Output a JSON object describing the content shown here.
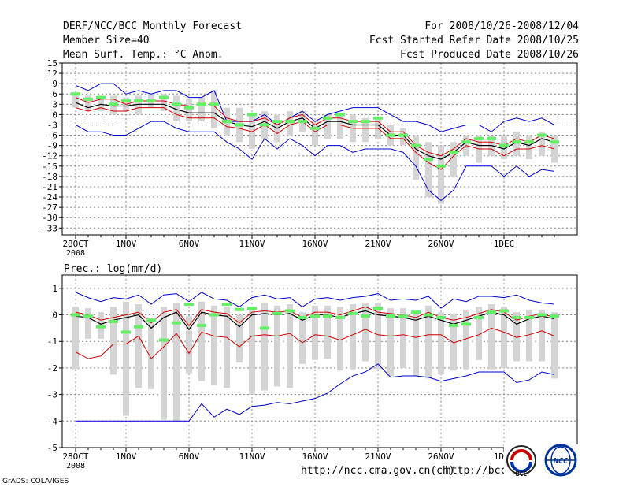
{
  "header": {
    "title": "DERF/NCC/BCC Monthly Forecast",
    "member_size": "Member Size=40",
    "variable": "Mean Surf. Temp.: °C Anom.",
    "period": "For 2008/10/26-2008/12/04",
    "fcst_started": "Fcst Started Refer Date 2008/10/25",
    "fcst_produced": "Fcst Produced Date 2008/10/26"
  },
  "footer": {
    "url1": "http://ncc.cma.gov.cn(ch)",
    "url2": "http://bcc.",
    "grads": "GrADS: COLA/IGES",
    "logo1": "BCC",
    "logo2": "NCC"
  },
  "colors": {
    "upper": "#0000cc",
    "lower": "#0000cc",
    "p25_p75": "#cc0000",
    "median": "#000000",
    "observed": "#66ee66",
    "spread": "#d4d4d4",
    "grid": "#888888"
  },
  "chart_data": [
    {
      "type": "line",
      "title": "Mean Surf. Temp.: °C Anom.",
      "ylim": [
        -35,
        15
      ],
      "yticks": [
        15,
        12,
        9,
        6,
        3,
        0,
        -3,
        -6,
        -9,
        -12,
        -15,
        -18,
        -21,
        -24,
        -27,
        -30,
        -33
      ],
      "x_tick_labels": [
        {
          "day": 0,
          "label": "28OCT",
          "sub": "2008"
        },
        {
          "day": 4,
          "label": "1NOV"
        },
        {
          "day": 9,
          "label": "6NOV"
        },
        {
          "day": 14,
          "label": "11NOV"
        },
        {
          "day": 19,
          "label": "16NOV"
        },
        {
          "day": 24,
          "label": "21NOV"
        },
        {
          "day": 29,
          "label": "26NOV"
        },
        {
          "day": 34,
          "label": "1DEC"
        }
      ],
      "x": [
        0,
        1,
        2,
        3,
        4,
        5,
        6,
        7,
        8,
        9,
        10,
        11,
        12,
        13,
        14,
        15,
        16,
        17,
        18,
        19,
        20,
        21,
        22,
        23,
        24,
        25,
        26,
        27,
        28,
        29,
        30,
        31,
        32,
        33,
        34,
        35,
        36,
        37,
        38
      ],
      "series": [
        {
          "name": "upper",
          "values": [
            8.5,
            7,
            9,
            9,
            6,
            7,
            6,
            7,
            7,
            5,
            5,
            7,
            -2,
            -2,
            -2,
            0,
            -3,
            -1,
            1,
            -2,
            0,
            1,
            2,
            2,
            2,
            0,
            -2,
            -2,
            -3,
            -5,
            -4,
            -3,
            -3,
            -5,
            -2,
            -1,
            -2,
            -1,
            -3
          ]
        },
        {
          "name": "p75",
          "values": [
            5,
            3.5,
            4.5,
            4.5,
            3,
            4,
            4,
            4,
            3,
            2.5,
            2.5,
            2.5,
            -1,
            -2,
            -2,
            -1,
            -3,
            -1,
            0,
            -3,
            -1,
            -1,
            -2,
            -2,
            -2,
            -5,
            -5,
            -9,
            -11,
            -12,
            -10,
            -7,
            -8,
            -8,
            -9,
            -7,
            -8,
            -6,
            -7
          ]
        },
        {
          "name": "median",
          "values": [
            3.5,
            2,
            3,
            2.5,
            2.5,
            3,
            3,
            3,
            1.5,
            0.5,
            0.5,
            0.5,
            -2,
            -3,
            -3.5,
            -2,
            -4,
            -2,
            -1,
            -4,
            -2,
            -2,
            -3,
            -3,
            -3,
            -6,
            -6,
            -10,
            -12,
            -13,
            -11,
            -8,
            -9,
            -9,
            -10,
            -8,
            -9,
            -7,
            -8
          ]
        },
        {
          "name": "p25",
          "values": [
            2,
            1,
            2,
            1,
            1,
            2,
            2,
            2,
            0,
            -1,
            -1,
            -1,
            -3.5,
            -4,
            -5,
            -3,
            -5.5,
            -3,
            -2,
            -5,
            -3,
            -3,
            -4,
            -4,
            -4,
            -7,
            -7,
            -11,
            -14,
            -16,
            -12,
            -9,
            -10,
            -10,
            -12,
            -10,
            -10,
            -9,
            -10
          ]
        },
        {
          "name": "lower",
          "values": [
            -3,
            -5,
            -5,
            -6,
            -6,
            -4,
            -2,
            -2,
            -4,
            -5,
            -5,
            -5,
            -8,
            -10,
            -13,
            -7,
            -10,
            -7,
            -9,
            -12,
            -9,
            -9,
            -11,
            -10,
            -10,
            -10,
            -11,
            -15,
            -22,
            -25,
            -22,
            -15,
            -15,
            -15,
            -18,
            -15,
            -18,
            -16,
            -16.5
          ]
        },
        {
          "name": "spread_top",
          "values": [
            6,
            5.5,
            5.5,
            5.5,
            5,
            5.5,
            6,
            6,
            5.5,
            4.5,
            5,
            7,
            2,
            2,
            0,
            1,
            0,
            1,
            1,
            -2,
            0,
            0,
            0,
            -1,
            -1,
            -3,
            -4,
            -6,
            -8,
            -9,
            -8,
            -6,
            -6,
            -6,
            -6,
            -5,
            -6,
            -5,
            -6
          ]
        },
        {
          "name": "spread_bot",
          "values": [
            2,
            1,
            1,
            0,
            1,
            0,
            2,
            1,
            -2,
            -2,
            -2,
            -4,
            -6,
            -8,
            -10,
            -7,
            -8,
            -6,
            -5,
            -9,
            -7,
            -7,
            -8,
            -8,
            -7,
            -9,
            -9,
            -19,
            -24,
            -26,
            -18,
            -12,
            -14,
            -12,
            -13,
            -12,
            -13,
            -12,
            -14
          ]
        },
        {
          "name": "observed",
          "values": [
            6,
            4.5,
            5,
            3,
            4,
            4,
            4,
            5,
            3,
            2,
            3,
            3,
            -2,
            -3,
            0,
            -3,
            -2,
            -2,
            -2,
            -4,
            -1,
            0,
            -2,
            -2,
            -1,
            -6,
            -6,
            -9,
            -13,
            -15,
            -11,
            -8,
            -7,
            -7,
            -9,
            -8,
            -8,
            -6,
            -8
          ]
        }
      ]
    },
    {
      "type": "line",
      "title": "Prec.: log(mm/d)",
      "ylim": [
        -5,
        1.5
      ],
      "yticks": [
        1,
        0,
        -1,
        -2,
        -3,
        -4,
        -5
      ],
      "x_tick_labels": [
        {
          "day": 0,
          "label": "28OCT",
          "sub": "2008"
        },
        {
          "day": 4,
          "label": "1NOV"
        },
        {
          "day": 9,
          "label": "6NOV"
        },
        {
          "day": 14,
          "label": "11NOV"
        },
        {
          "day": 19,
          "label": "16NOV"
        },
        {
          "day": 24,
          "label": "21NOV"
        },
        {
          "day": 29,
          "label": "26NOV"
        },
        {
          "day": 34,
          "label": "1DEC"
        }
      ],
      "x": [
        0,
        1,
        2,
        3,
        4,
        5,
        6,
        7,
        8,
        9,
        10,
        11,
        12,
        13,
        14,
        15,
        16,
        17,
        18,
        19,
        20,
        21,
        22,
        23,
        24,
        25,
        26,
        27,
        28,
        29,
        30,
        31,
        32,
        33,
        34,
        35,
        36,
        37,
        38
      ],
      "series": [
        {
          "name": "upper",
          "values": [
            0.85,
            0.65,
            0.5,
            0.65,
            0.6,
            0.75,
            0.4,
            0.75,
            0.8,
            0.5,
            0.85,
            0.6,
            0.55,
            0.3,
            0.65,
            0.75,
            0.6,
            0.65,
            0.3,
            0.6,
            0.65,
            0.55,
            0.65,
            0.7,
            0.8,
            0.55,
            0.6,
            0.55,
            0.7,
            0.25,
            0.6,
            0.5,
            0.7,
            0.7,
            0.65,
            0.75,
            0.55,
            0.45,
            0.4
          ]
        },
        {
          "name": "p75",
          "values": [
            0.1,
            0,
            -0.2,
            -0.1,
            0,
            0.1,
            -0.3,
            0.1,
            0.2,
            -0.4,
            0.2,
            0.1,
            0.05,
            -0.3,
            0.1,
            0.15,
            0.1,
            0.15,
            -0.1,
            0.1,
            0.1,
            0,
            0.15,
            0.3,
            0.1,
            0.05,
            0,
            -0.1,
            0.1,
            -0.1,
            -0.2,
            -0.1,
            0.05,
            0.2,
            0.1,
            -0.2,
            -0.05,
            0.05,
            -0.1
          ]
        },
        {
          "name": "median",
          "values": [
            -0.05,
            -0.1,
            -0.35,
            -0.2,
            -0.1,
            0,
            -0.5,
            -0.1,
            0.1,
            -0.55,
            0.1,
            0,
            -0.05,
            -0.45,
            0,
            0.05,
            0,
            0.05,
            -0.2,
            0,
            0,
            -0.1,
            0.05,
            0.15,
            0,
            -0.05,
            -0.1,
            -0.2,
            -0.05,
            -0.2,
            -0.35,
            -0.2,
            -0.05,
            0.1,
            0,
            -0.35,
            -0.15,
            -0.05,
            -0.15
          ]
        },
        {
          "name": "p25",
          "values": [
            -1.4,
            -1.65,
            -1.55,
            -1.1,
            -1.1,
            -0.8,
            -1.65,
            -1.2,
            -0.7,
            -1.45,
            -0.65,
            -0.8,
            -0.85,
            -1.2,
            -0.8,
            -0.75,
            -0.8,
            -0.7,
            -1.05,
            -0.75,
            -0.8,
            -0.95,
            -0.75,
            -0.55,
            -0.75,
            -0.8,
            -0.75,
            -0.85,
            -0.75,
            -0.75,
            -1.05,
            -0.9,
            -0.75,
            -0.5,
            -0.65,
            -0.85,
            -0.75,
            -0.6,
            -0.8
          ]
        },
        {
          "name": "lower",
          "values": [
            -4,
            -4,
            -4,
            -4,
            -4,
            -4,
            -4,
            -4,
            -4,
            -4,
            -3.35,
            -3.85,
            -3.55,
            -3.75,
            -3.45,
            -3.4,
            -3.3,
            -3.35,
            -3.25,
            -3.15,
            -2.95,
            -2.6,
            -2.3,
            -2.15,
            -1.85,
            -2.35,
            -2.3,
            -2.3,
            -2.35,
            -2.5,
            -2.4,
            -2.3,
            -2.15,
            -2.15,
            -2.15,
            -2.55,
            -2.45,
            -2.15,
            -2.25
          ]
        },
        {
          "name": "spread_top",
          "values": [
            0.3,
            0.25,
            0.1,
            0.3,
            0.5,
            0.4,
            -0.1,
            0.3,
            0.45,
            -0.05,
            0.5,
            0.35,
            0.3,
            0,
            0.3,
            0.45,
            0.35,
            0.4,
            0.1,
            0.35,
            0.35,
            0.3,
            0.4,
            0.45,
            0.45,
            0.25,
            0.25,
            0.15,
            0.35,
            0.1,
            0.05,
            0.2,
            0.3,
            0.4,
            0.3,
            0.1,
            0.2,
            0.2,
            0.1
          ]
        },
        {
          "name": "spread_bot",
          "values": [
            -2.05,
            -0.9,
            -0.9,
            -2.25,
            -3.8,
            -2.75,
            -2.8,
            -3.95,
            -4.0,
            -2.2,
            -2.5,
            -2.65,
            -2.75,
            -1.8,
            -3.0,
            -2.85,
            -2.7,
            -2.75,
            -1.85,
            -1.7,
            -1.65,
            -2.1,
            -2.05,
            -1.75,
            -2.05,
            -2.3,
            -2.0,
            -2.3,
            -2.4,
            -2.25,
            -2.1,
            -2.05,
            -1.7,
            -2.05,
            -2.0,
            -1.75,
            -1.75,
            -1.75,
            -2.4
          ]
        },
        {
          "name": "observed",
          "values": [
            0,
            -0.05,
            -0.45,
            -0.25,
            -0.65,
            -0.45,
            -0.2,
            -0.95,
            -0.3,
            0.4,
            -0.4,
            0,
            0.4,
            0.2,
            0.25,
            -0.5,
            0.05,
            0.15,
            -0.1,
            -0.05,
            -0.05,
            -0.1,
            0.05,
            -0.05,
            0.25,
            -0.05,
            -0.05,
            0.1,
            0,
            -0.1,
            -0.4,
            -0.35,
            -0.1,
            0.1,
            0.15,
            -0.1,
            -0.1,
            0,
            -0.05
          ]
        }
      ]
    }
  ]
}
